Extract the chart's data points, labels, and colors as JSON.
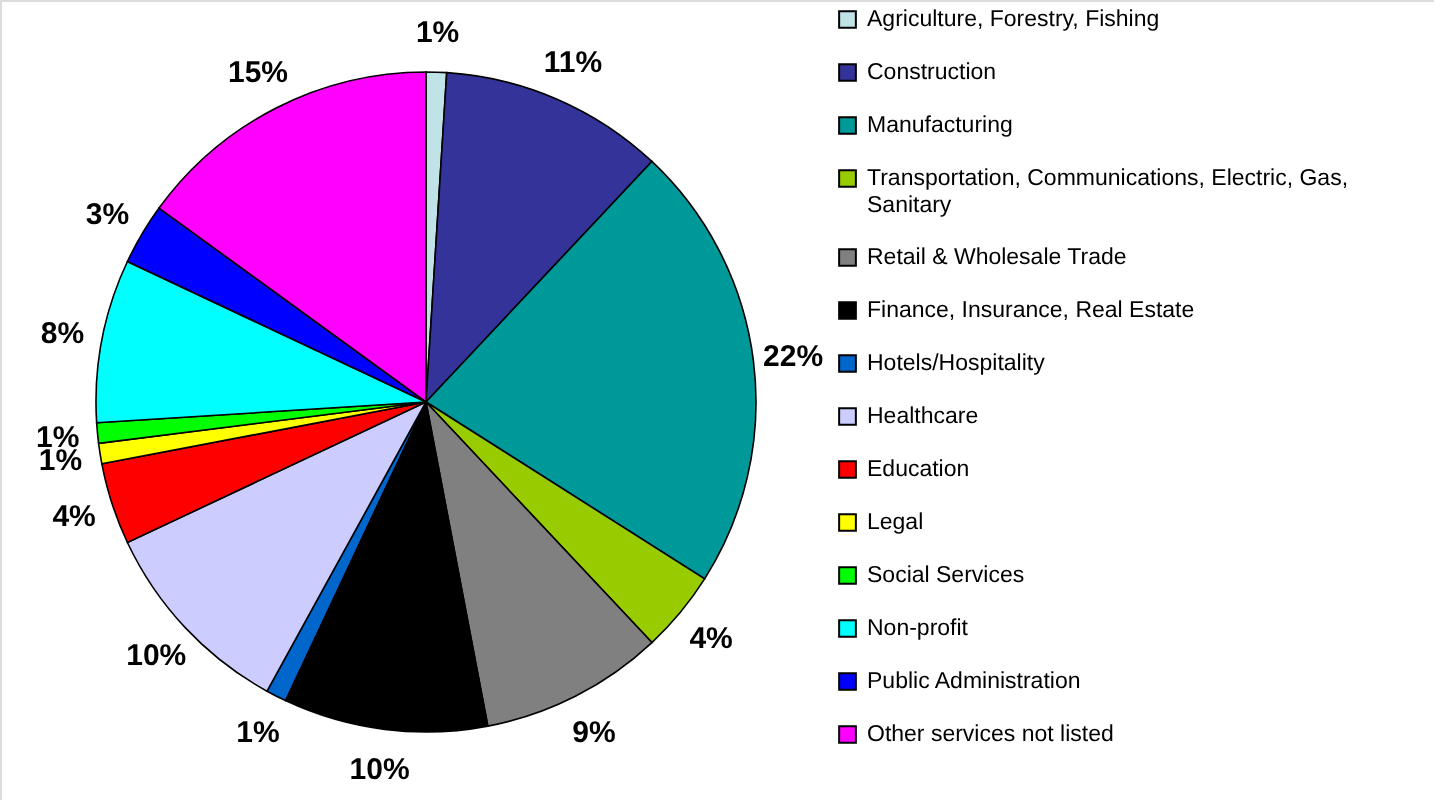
{
  "chart_data": {
    "type": "pie",
    "categories": [
      "Agriculture, Forestry, Fishing",
      "Construction",
      "Manufacturing",
      "Transportation, Communications, Electric, Gas, Sanitary",
      "Retail & Wholesale Trade",
      "Finance, Insurance, Real Estate",
      "Hotels/Hospitality",
      "Healthcare",
      "Education",
      "Legal",
      "Social Services",
      "Non-profit",
      "Public Administration",
      "Other services not listed"
    ],
    "values": [
      1,
      11,
      22,
      4,
      9,
      10,
      1,
      10,
      4,
      1,
      1,
      8,
      3,
      15
    ],
    "colors": [
      "#bfe3e6",
      "#333399",
      "#009999",
      "#99cc00",
      "#808080",
      "#000000",
      "#0066cc",
      "#ccccff",
      "#ff0000",
      "#ffff00",
      "#00ff00",
      "#00ffff",
      "#0000ff",
      "#ff00ff"
    ],
    "value_labels": [
      "1%",
      "11%",
      "22%",
      "4%",
      "9%",
      "10%",
      "1%",
      "10%",
      "4%",
      "1%",
      "1%",
      "8%",
      "3%",
      "15%"
    ],
    "legend": "right"
  }
}
